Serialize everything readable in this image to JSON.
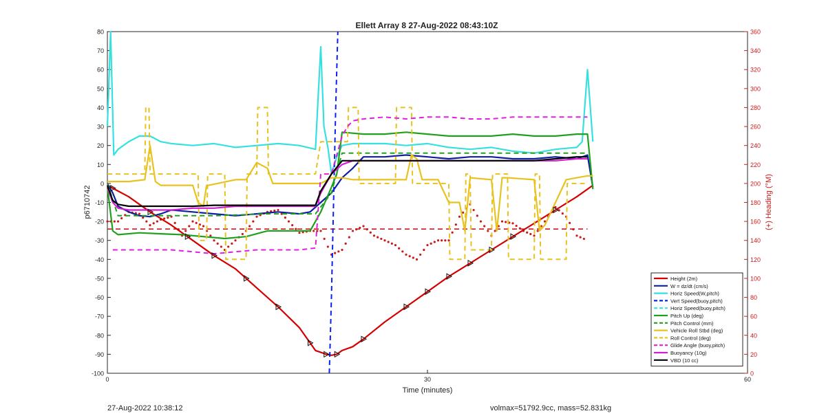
{
  "footer": {
    "timestamp": "27-Aug-2022 10:38:12",
    "stats": "volmax=51792.9cc, mass=52.831kg"
  },
  "chart_data": {
    "type": "line",
    "title": "Ellett Array 8 27-Aug-2022 08:43:10Z",
    "xlabel": "Time (minutes)",
    "ylabel": "p6710742",
    "y2label": "(+) Heading (°M)",
    "xlim": [
      0,
      60
    ],
    "ylim": [
      -100,
      80
    ],
    "y2lim": [
      0,
      360
    ],
    "xticks": [
      0,
      30,
      60
    ],
    "yticks": [
      -100,
      -90,
      -80,
      -70,
      -60,
      -50,
      -40,
      -30,
      -20,
      -10,
      0,
      10,
      20,
      30,
      40,
      50,
      60,
      70,
      80
    ],
    "y2ticks": [
      0,
      20,
      40,
      60,
      80,
      100,
      120,
      140,
      160,
      180,
      200,
      220,
      240,
      260,
      280,
      300,
      320,
      340,
      360
    ],
    "grid": false,
    "legend_position": "bottom-right",
    "series": [
      {
        "name": "Height (2m)",
        "color": "#d40000",
        "style": "solid",
        "x": [
          0,
          2,
          4,
          6,
          8,
          10,
          12,
          14,
          16,
          18,
          19,
          19.5,
          20,
          20.5,
          21,
          21.5,
          22,
          23,
          24,
          26,
          28,
          30,
          32,
          34,
          36,
          38,
          40,
          42,
          44,
          45.5
        ],
        "y": [
          -1,
          -7,
          -15,
          -22,
          -30,
          -38,
          -45,
          -55,
          -65,
          -76,
          -84,
          -88,
          -89,
          -90,
          -90.5,
          -90,
          -88,
          -86,
          -82,
          -73,
          -65,
          -57,
          -49,
          -42,
          -35,
          -28,
          -21,
          -14,
          -7,
          -1
        ]
      },
      {
        "name": "W = dz/dt (cm/s)",
        "color": "#0d1fa0",
        "style": "solid",
        "x": [
          0,
          0.5,
          1,
          2,
          3,
          4,
          5,
          6,
          8,
          10,
          12,
          14,
          16,
          18,
          19,
          20,
          21,
          22,
          23,
          24,
          26,
          28,
          30,
          32,
          34,
          36,
          38,
          40,
          42,
          44,
          45,
          45.5
        ],
        "y": [
          0,
          -5,
          -12,
          -15,
          -17,
          -17.5,
          -16,
          -14,
          -15,
          -16,
          -17,
          -16,
          -15,
          -16,
          -15,
          -10,
          -5,
          3,
          8,
          14,
          14,
          15,
          14,
          13,
          14,
          14,
          13,
          13,
          14,
          13,
          15,
          -2
        ]
      },
      {
        "name": "Horiz Speed(W,pitch)",
        "color": "#37e0e0",
        "style": "solid",
        "x": [
          0,
          0.3,
          0.6,
          1,
          2,
          3,
          4,
          5,
          6,
          8,
          10,
          12,
          14,
          16,
          18,
          19.5,
          20,
          20.3,
          20.7,
          21,
          21.5,
          22,
          23,
          24,
          26,
          28,
          30,
          32,
          34,
          36,
          38,
          40,
          42,
          44,
          44.5,
          45,
          45.5
        ],
        "y": [
          30,
          80,
          15,
          18,
          22,
          25,
          25,
          22,
          21,
          20,
          21,
          19,
          20,
          21,
          20,
          18,
          72,
          30,
          18,
          5,
          14,
          20,
          21,
          21,
          21,
          20,
          21,
          19,
          18,
          19,
          17,
          16,
          18,
          19,
          22,
          60,
          22
        ]
      },
      {
        "name": "Vert Speed(buoy,pitch)",
        "color": "#0a1ff0",
        "style": "dashed",
        "x": [
          20.8,
          21.0,
          21.2,
          21.4,
          21.6
        ],
        "y": [
          -100,
          -60,
          -10,
          40,
          80
        ]
      },
      {
        "name": "Horiz Speed(buoy,pitch)",
        "color": "#37e0e0",
        "style": "dashed",
        "x": [],
        "y": []
      },
      {
        "name": "Pitch Up (deg)",
        "color": "#1fa01f",
        "style": "solid",
        "x": [
          0,
          0.5,
          1,
          3,
          5,
          7,
          9,
          11,
          13,
          15,
          17,
          19,
          20,
          21,
          21.5,
          22,
          24,
          26,
          28,
          30,
          32,
          34,
          36,
          38,
          40,
          42,
          44,
          45,
          45.5
        ],
        "y": [
          -2,
          -25,
          -27,
          -26,
          -26.5,
          -27,
          -28,
          -29,
          -28,
          -25,
          -25,
          -25,
          -15,
          -2,
          5,
          27,
          26,
          26,
          27,
          26,
          25,
          25,
          25,
          26,
          25,
          25,
          26,
          26,
          -3
        ]
      },
      {
        "name": "Pitch Control (mm)",
        "color": "#1fa01f",
        "style": "dashed",
        "x": [
          0,
          1,
          5,
          10,
          15,
          19.5,
          21,
          22,
          25,
          30,
          35,
          40,
          45
        ],
        "y": [
          0,
          -17,
          -17,
          -17,
          -16,
          -16,
          -5,
          16,
          16,
          16,
          16,
          16,
          16
        ]
      },
      {
        "name": "Vehicle Roll Stbd (deg)",
        "color": "#e8c21f",
        "style": "solid",
        "x": [
          0,
          1,
          2,
          3.5,
          4,
          4.5,
          5,
          8,
          8.5,
          9,
          9.3,
          9.5,
          12,
          13,
          14,
          15,
          15.5,
          16,
          19,
          20,
          21,
          22,
          23,
          23.5,
          24,
          28,
          28.5,
          29,
          29.5,
          30,
          31,
          32,
          33,
          33.5,
          34,
          36,
          36.5,
          37,
          37.5,
          40,
          40.5,
          41,
          43,
          44,
          45,
          45.5
        ],
        "y": [
          1,
          1,
          1,
          2,
          20,
          1,
          -1,
          -1,
          -10,
          -12,
          -1,
          -1,
          2,
          2,
          11,
          8,
          0,
          0,
          0,
          0,
          3,
          3,
          2,
          2,
          2,
          2,
          15,
          13,
          2,
          2,
          2,
          -10,
          -10,
          -25,
          3,
          2,
          -25,
          3,
          3,
          2,
          -25,
          -22,
          2,
          3,
          4,
          4
        ]
      },
      {
        "name": "Roll Control (deg)",
        "color": "#e8c21f",
        "style": "dashed",
        "x": [
          0,
          3.5,
          3.6,
          3.9,
          4.0,
          4.3,
          4.4,
          8.5,
          8.6,
          9.3,
          9.4,
          11,
          11.1,
          13,
          13.1,
          14,
          14.1,
          15,
          15.1,
          16.5,
          16.6,
          19.5,
          20,
          22.5,
          22.6,
          23.5,
          23.6,
          27,
          27.1,
          28.5,
          28.6,
          29.8,
          29.9,
          30.5,
          31,
          32,
          32.1,
          33.5,
          33.6,
          34,
          34.1,
          36,
          36.1,
          37.5,
          37.6,
          40,
          40.1,
          40.5,
          40.6,
          43,
          43.1,
          45
        ],
        "y": [
          5,
          5,
          40,
          40,
          5,
          5,
          5,
          5,
          -30,
          -30,
          5,
          5,
          -40,
          -40,
          5,
          5,
          40,
          40,
          5,
          5,
          5,
          5,
          22,
          22,
          40,
          40,
          0,
          0,
          40,
          40,
          0,
          0,
          0,
          0,
          0,
          0,
          -40,
          -40,
          5,
          5,
          -35,
          -35,
          5,
          5,
          -40,
          -40,
          5,
          5,
          -40,
          -40,
          0,
          0
        ]
      },
      {
        "name": "Glide Angle (buoy,pitch)",
        "color": "#e020e0",
        "style": "dashed",
        "x": [
          0.5,
          2,
          4,
          6,
          8,
          10,
          12,
          14,
          16,
          18,
          19.5,
          20,
          21,
          22,
          22.5,
          23,
          24,
          26,
          28,
          30,
          32,
          34,
          36,
          38,
          40,
          42,
          44,
          45
        ],
        "y": [
          -35,
          -35,
          -35,
          -35,
          -36,
          -37,
          -36,
          -35,
          -35,
          -35,
          -34,
          5,
          5,
          25,
          30,
          33,
          34,
          35,
          34,
          35,
          35,
          34,
          34,
          35,
          35,
          35,
          35,
          35
        ]
      },
      {
        "name": "Buoyancy (10g)",
        "color": "#d020d0",
        "style": "solid",
        "x": [
          0,
          0.5,
          1,
          2,
          4,
          6,
          8,
          10,
          12,
          14,
          16,
          18,
          19.5,
          20,
          21,
          22,
          23,
          24,
          26,
          28,
          30,
          32,
          34,
          36,
          38,
          40,
          42,
          44,
          45
        ],
        "y": [
          -2,
          -10,
          -13,
          -14,
          -14,
          -14,
          -13,
          -13,
          -12,
          -12,
          -12,
          -12,
          -12,
          -5,
          5,
          10,
          12,
          12,
          12,
          12,
          12,
          12,
          12,
          12,
          12,
          12,
          12,
          13,
          13
        ]
      },
      {
        "name": "VBD (10 cc)",
        "color": "#000000",
        "style": "solid",
        "x": [
          0,
          0.5,
          1,
          2,
          4,
          6,
          8,
          10,
          12,
          14,
          16,
          18,
          19.5,
          20,
          21,
          22,
          23,
          24,
          26,
          28,
          30,
          32,
          34,
          36,
          38,
          40,
          42,
          44,
          45
        ],
        "y": [
          -1,
          -9,
          -11,
          -12,
          -12,
          -12,
          -12,
          -11.5,
          -11.5,
          -11.5,
          -11.5,
          -11.5,
          -11.5,
          -4,
          5,
          12,
          12,
          12,
          12,
          12,
          12,
          12,
          12,
          12,
          12,
          12,
          13,
          14,
          14
        ]
      }
    ],
    "heading_series": {
      "color": "#cc1a1a",
      "mean_heading": 152,
      "x": [
        0,
        1,
        2,
        3,
        4,
        5,
        6,
        7,
        8,
        9,
        10,
        11,
        12,
        13,
        14,
        15,
        16,
        17,
        18,
        19,
        20,
        21,
        22,
        23,
        24,
        25,
        26,
        27,
        28,
        29,
        30,
        31,
        32,
        33,
        34,
        35,
        36,
        37,
        38,
        39,
        40,
        41,
        42,
        43,
        44,
        45
      ],
      "y": [
        160,
        160,
        170,
        168,
        156,
        162,
        165,
        145,
        160,
        155,
        140,
        130,
        140,
        150,
        165,
        170,
        172,
        160,
        148,
        150,
        150,
        125,
        130,
        150,
        155,
        145,
        140,
        135,
        125,
        120,
        135,
        140,
        140,
        165,
        178,
        160,
        145,
        160,
        158,
        150,
        145,
        160,
        175,
        165,
        145,
        140
      ]
    },
    "markers": {
      "shape": "triangle",
      "color": "#111111",
      "on_series": "Height (2m)",
      "x": [
        0.5,
        4,
        7.5,
        10,
        13,
        16,
        19,
        20.5,
        21.5,
        24,
        28,
        30,
        32,
        34,
        36,
        38,
        42
      ]
    }
  }
}
